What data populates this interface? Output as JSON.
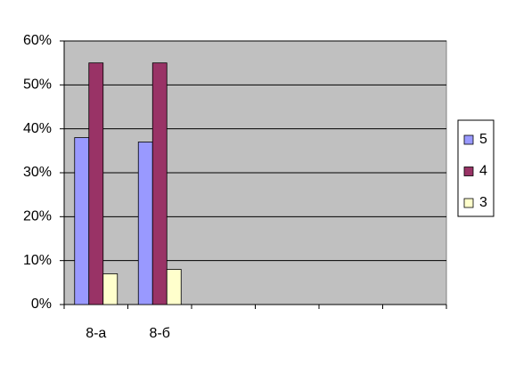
{
  "chart_data": {
    "type": "bar",
    "categories": [
      "8-а",
      "8-б",
      null,
      null,
      null,
      null
    ],
    "series": [
      {
        "name": "5",
        "color": "#9999ff",
        "values": [
          38,
          37,
          null,
          null,
          null,
          null
        ]
      },
      {
        "name": "4",
        "color": "#993366",
        "values": [
          55,
          55,
          null,
          null,
          null,
          null
        ]
      },
      {
        "name": "3",
        "color": "#ffffcc",
        "values": [
          7,
          8,
          null,
          null,
          null,
          null
        ]
      }
    ],
    "ylim": [
      0,
      60
    ],
    "yticks": [
      {
        "value": 0,
        "label": "0%"
      },
      {
        "value": 10,
        "label": "10%"
      },
      {
        "value": 20,
        "label": "20%"
      },
      {
        "value": 30,
        "label": "30%"
      },
      {
        "value": 40,
        "label": "40%"
      },
      {
        "value": 50,
        "label": "50%"
      },
      {
        "value": 60,
        "label": "60%"
      }
    ],
    "grid": true,
    "legend": "right",
    "plot_background": "#c0c0c0"
  }
}
